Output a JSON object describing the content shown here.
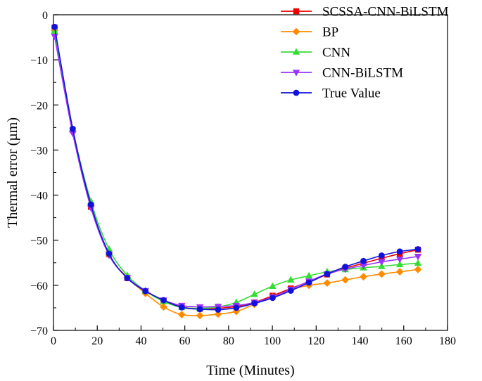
{
  "chart_data": {
    "type": "line",
    "title": "",
    "xlabel": "Time (Minutes)",
    "ylabel": "Thermal error (µm)",
    "xlim": [
      0,
      180
    ],
    "ylim": [
      -70,
      0
    ],
    "xticks": [
      0,
      20,
      40,
      60,
      80,
      100,
      120,
      140,
      160,
      180
    ],
    "xtick_labels": [
      "0",
      "20",
      "40",
      "60",
      "80",
      "100",
      "120",
      "140",
      "160",
      "180"
    ],
    "yticks": [
      0,
      -10,
      -20,
      -30,
      -40,
      -50,
      -60,
      -70
    ],
    "ytick_labels": [
      "0",
      "−10",
      "−20",
      "−30",
      "−40",
      "−50",
      "−60",
      "−70"
    ],
    "grid": false,
    "legend_position": "top-right",
    "x": [
      0.5,
      8.8,
      17.1,
      25.4,
      33.7,
      42,
      50.3,
      58.6,
      66.9,
      75.2,
      83.5,
      91.8,
      100.1,
      108.4,
      116.7,
      125,
      133.3,
      141.6,
      149.9,
      158.2,
      166.5
    ],
    "series": [
      {
        "name": "SCSSA-CNN-BiLSTM",
        "color": "#ee0000",
        "marker": "square",
        "values": [
          -2.8,
          -25.6,
          -42.6,
          -53.1,
          -58.4,
          -61.3,
          -63.4,
          -64.8,
          -65.2,
          -65.1,
          -64.7,
          -63.8,
          -62.3,
          -60.7,
          -59.2,
          -57.6,
          -56.2,
          -55.1,
          -54.0,
          -53.0,
          -52.1
        ]
      },
      {
        "name": "BP",
        "color": "#ff8c00",
        "marker": "diamond",
        "values": [
          -3.5,
          -25.9,
          -42.4,
          -53.3,
          -58.2,
          -61.8,
          -64.8,
          -66.5,
          -66.7,
          -66.4,
          -65.8,
          -64.2,
          -62.6,
          -61.0,
          -60.0,
          -59.5,
          -58.8,
          -58.1,
          -57.5,
          -57.0,
          -56.5
        ]
      },
      {
        "name": "CNN",
        "color": "#33dd33",
        "marker": "triangle-up",
        "values": [
          -3.6,
          -25.4,
          -41.4,
          -52.0,
          -57.8,
          -61.2,
          -63.6,
          -64.9,
          -65.1,
          -64.8,
          -63.8,
          -62.0,
          -60.2,
          -58.8,
          -57.9,
          -57.0,
          -56.5,
          -56.1,
          -55.8,
          -55.4,
          -55.1
        ]
      },
      {
        "name": "CNN-BiLSTM",
        "color": "#9933ff",
        "marker": "triangle-down",
        "values": [
          -4.8,
          -26.3,
          -42.8,
          -53.3,
          -58.3,
          -61.2,
          -63.3,
          -64.5,
          -64.8,
          -64.7,
          -64.5,
          -63.8,
          -62.6,
          -60.9,
          -59.1,
          -57.5,
          -56.4,
          -55.6,
          -54.8,
          -54.2,
          -53.6
        ]
      },
      {
        "name": "True Value",
        "color": "#1111dd",
        "marker": "circle",
        "values": [
          -2.7,
          -25.3,
          -42.1,
          -53.0,
          -58.4,
          -61.3,
          -63.3,
          -64.9,
          -65.3,
          -65.4,
          -65.0,
          -64.0,
          -62.8,
          -61.2,
          -59.4,
          -57.5,
          -55.9,
          -54.6,
          -53.4,
          -52.5,
          -52.0
        ]
      }
    ]
  }
}
